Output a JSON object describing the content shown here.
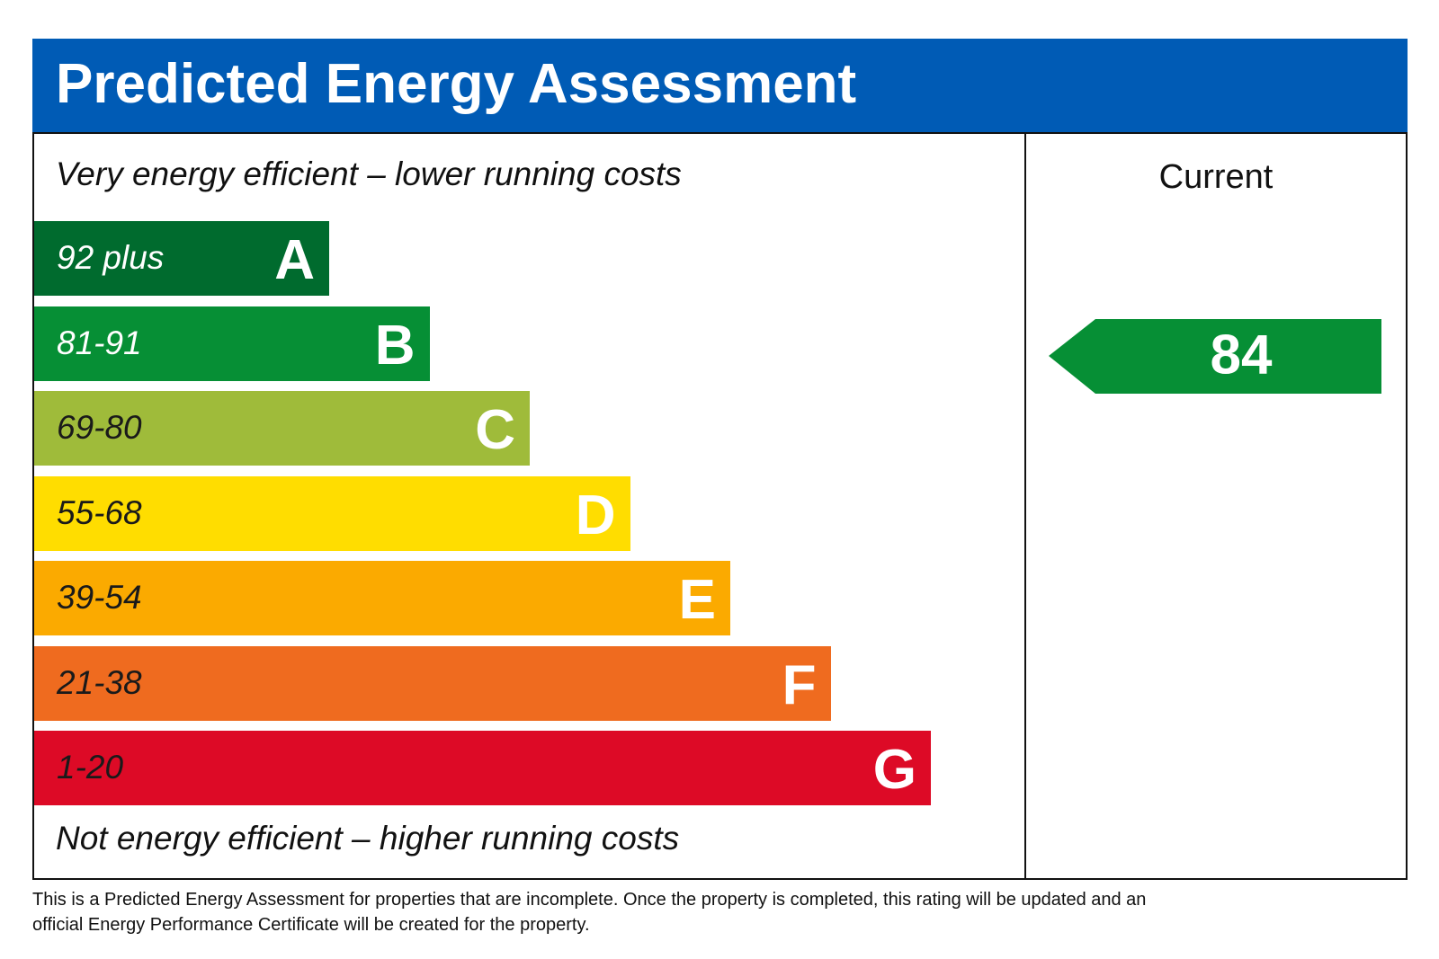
{
  "header": {
    "title": "Predicted Energy Assessment"
  },
  "scale": {
    "top_label": "Very energy efficient – lower running costs",
    "bottom_label": "Not energy efficient – higher running costs",
    "bands": [
      {
        "range": "92 plus",
        "letter": "A",
        "color": "#006b2e",
        "text_color": "#ffffff"
      },
      {
        "range": "81-91",
        "letter": "B",
        "color": "#068f35",
        "text_color": "#ffffff"
      },
      {
        "range": "69-80",
        "letter": "C",
        "color": "#9fbb3a",
        "text_color": "#1a1a1a"
      },
      {
        "range": "55-68",
        "letter": "D",
        "color": "#ffdd00",
        "text_color": "#1a1a1a"
      },
      {
        "range": "39-54",
        "letter": "E",
        "color": "#fbaa00",
        "text_color": "#1a1a1a"
      },
      {
        "range": "21-38",
        "letter": "F",
        "color": "#ef6b1f",
        "text_color": "#1a1a1a"
      },
      {
        "range": "1-20",
        "letter": "G",
        "color": "#dd0a26",
        "text_color": "#1a1a1a"
      }
    ]
  },
  "current": {
    "label": "Current",
    "value": "84",
    "color": "#068f35"
  },
  "footnote": {
    "lines": [
      "This is a Predicted Energy Assessment for properties that are incomplete. Once the property is completed, this rating will be updated and an",
      "official Energy Performance Certificate will be created for the property."
    ]
  }
}
